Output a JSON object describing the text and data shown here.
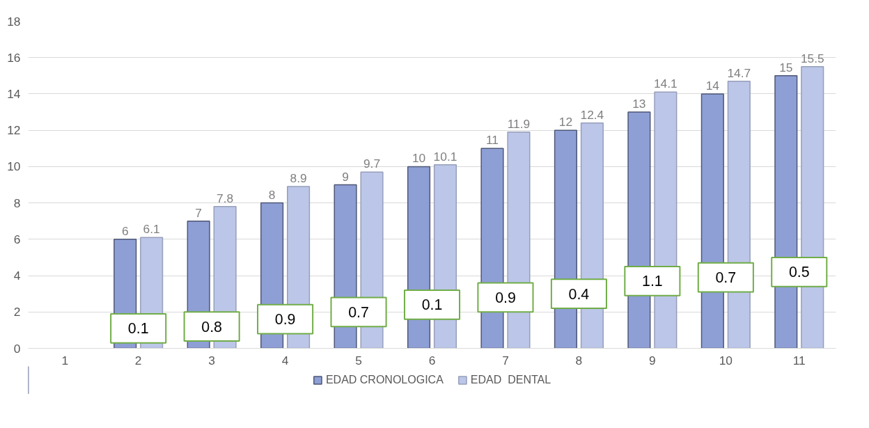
{
  "chart_data": {
    "type": "bar",
    "categories": [
      "1",
      "2",
      "3",
      "4",
      "5",
      "6",
      "7",
      "8",
      "9",
      "10",
      "11"
    ],
    "series": [
      {
        "name": "EDAD CRONOLOGICA",
        "color": "#8e9fd6",
        "values": [
          null,
          6,
          7,
          8,
          9,
          10,
          11,
          12,
          13,
          14,
          15
        ]
      },
      {
        "name": "EDAD  DENTAL",
        "color": "#bcc6e8",
        "values": [
          null,
          6.1,
          7.8,
          8.9,
          9.7,
          10.1,
          11.9,
          12.4,
          14.1,
          14.7,
          15.5
        ]
      }
    ],
    "ylim": [
      0,
      18
    ],
    "yticks": [
      0,
      2,
      4,
      6,
      8,
      10,
      12,
      14,
      16,
      18
    ],
    "grid": "y",
    "legend": "bottom",
    "data_labels": true,
    "annotations": [
      {
        "text": "0.1",
        "x": "2",
        "y": 1.1
      },
      {
        "text": "0.8",
        "x": "3",
        "y": 1.2
      },
      {
        "text": "0.9",
        "x": "4",
        "y": 1.6
      },
      {
        "text": "0.7",
        "x": "5",
        "y": 2.0
      },
      {
        "text": "0.1",
        "x": "6",
        "y": 2.4
      },
      {
        "text": "0.9",
        "x": "7",
        "y": 2.8
      },
      {
        "text": "0.4",
        "x": "8",
        "y": 3.0
      },
      {
        "text": "1.1",
        "x": "9",
        "y": 3.7
      },
      {
        "text": "0.7",
        "x": "10",
        "y": 3.9
      },
      {
        "text": "0.5",
        "x": "11",
        "y": 4.2
      }
    ]
  }
}
